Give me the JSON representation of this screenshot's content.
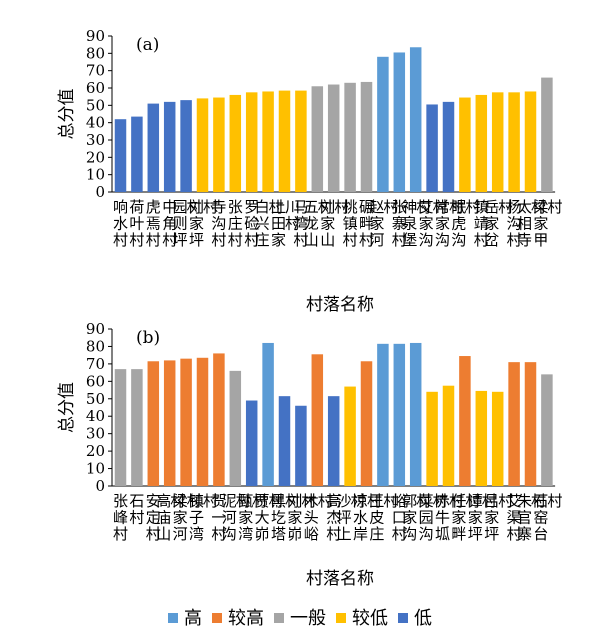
{
  "colors": {
    "高": "#5B9BD5",
    "较高": "#ED7D31",
    "一般": "#A5A5A5",
    "较低": "#FFC000",
    "低": "#4472C4"
  },
  "legend": [
    "高",
    "较高",
    "一般",
    "较低",
    "低"
  ],
  "chart_data": [
    {
      "type": "bar",
      "panel_label": "(a)",
      "ylabel": "总分值",
      "xlabel": "村落名称",
      "ylim": [
        0,
        90
      ],
      "yticks": [
        0,
        10,
        20,
        30,
        40,
        50,
        60,
        70,
        80,
        90
      ],
      "grid": false,
      "categories": [
        "响水村",
        "荷叶村",
        "虎焉村",
        "中角村",
        "园则坪村",
        "刘家坪村",
        "寺沟村",
        "张庄村",
        "罗硷村",
        "白兴庄村",
        "上田家川村",
        "马湾村",
        "五龙山村",
        "刘家山村",
        "桃镇村",
        "碾畔村",
        "赵家河村",
        "张寨村",
        "神泉堡村",
        "艾家沟村",
        "常家沟村",
        "眠虎沟村",
        "镇靖村",
        "岳家岔村",
        "杨沟村",
        "太相寺村",
        "梁家甲村"
      ],
      "values": [
        42,
        43.5,
        51,
        52,
        53,
        54,
        54.5,
        56,
        57.5,
        58,
        58.5,
        58.5,
        61,
        62,
        63,
        63.5,
        78,
        80.5,
        83.5,
        50.5,
        52,
        54.5,
        56,
        57.5,
        57.5,
        58,
        66
      ],
      "levels": [
        "低",
        "低",
        "低",
        "低",
        "低",
        "较低",
        "较低",
        "较低",
        "较低",
        "较低",
        "较低",
        "较低",
        "一般",
        "一般",
        "一般",
        "一般",
        "高",
        "高",
        "高",
        "低",
        "低",
        "较低",
        "较低",
        "较低",
        "较低",
        "较低",
        "一般"
      ]
    },
    {
      "type": "bar",
      "panel_label": "(b)",
      "ylabel": "总分值",
      "xlabel": "村落名称",
      "ylim": [
        0,
        90
      ],
      "yticks": [
        0,
        10,
        20,
        30,
        40,
        50,
        60,
        70,
        80,
        90
      ],
      "grid": false,
      "categories": [
        "张峰村",
        "石村",
        "安定村",
        "高庙山村",
        "梁家河村",
        "镇子湾村",
        "贺一村",
        "泥河沟村",
        "甄家湾村",
        "贾大峁村",
        "黑圪塔村",
        "刘家峁村",
        "木头峪村",
        "高杰村",
        "沙坪上村",
        "凉水岸村",
        "王皮庄村",
        "峪口村",
        "郭家沟村",
        "菜园沟村",
        "赤牛坬村",
        "任家畔村",
        "谭家坪村",
        "吕家坪村",
        "艾渠村",
        "朱官寨村",
        "石窑台村"
      ],
      "values": [
        67,
        67,
        71.5,
        72,
        73,
        73.5,
        76,
        66,
        49,
        82,
        51.5,
        46,
        75.5,
        51.5,
        57,
        71.5,
        81.5,
        81.5,
        82,
        54,
        57.5,
        74.5,
        54.5,
        54,
        71,
        71,
        64
      ],
      "levels": [
        "一般",
        "一般",
        "较高",
        "较高",
        "较高",
        "较高",
        "较高",
        "一般",
        "低",
        "高",
        "低",
        "低",
        "较高",
        "低",
        "较低",
        "较高",
        "高",
        "高",
        "高",
        "较低",
        "较低",
        "较高",
        "较低",
        "较低",
        "较高",
        "较高",
        "一般"
      ]
    }
  ]
}
